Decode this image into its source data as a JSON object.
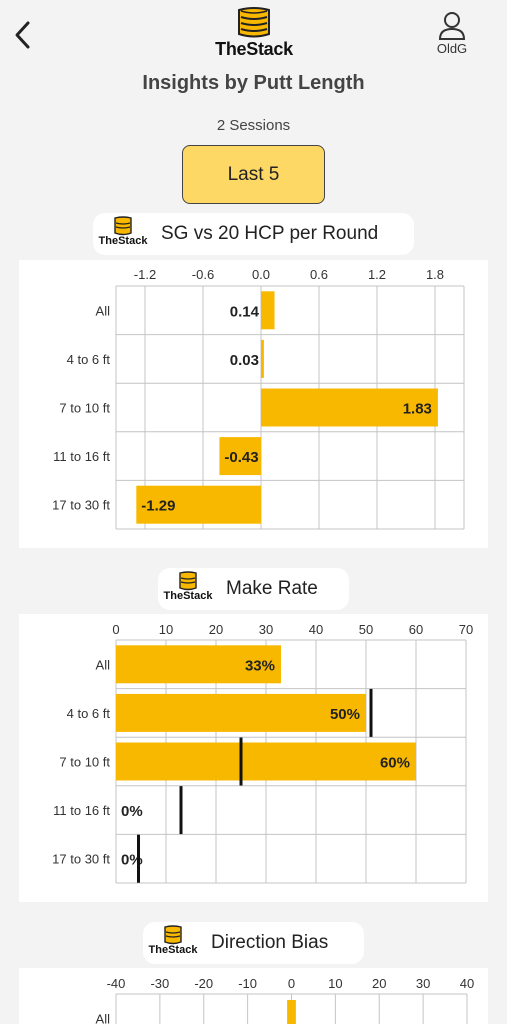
{
  "header": {
    "brand": "TheStack",
    "user_label": "OldG"
  },
  "page": {
    "title": "Insights by Putt Length",
    "sessions": "2 Sessions",
    "range_button": "Last 5"
  },
  "charts": {
    "sg": {
      "chip_title": "SG vs 20 HCP per Round",
      "brand": "TheStack"
    },
    "make": {
      "chip_title": "Make Rate",
      "brand": "TheStack"
    },
    "dir": {
      "chip_title": "Direction Bias",
      "brand": "TheStack"
    }
  },
  "colors": {
    "bar": "#f9b800",
    "background": "#f3f3f3",
    "range_button": "#fed864"
  },
  "chart_data": [
    {
      "type": "bar",
      "orientation": "horizontal",
      "title": "SG vs 20 HCP per Round",
      "categories": [
        "All",
        "4 to 6 ft",
        "7 to 10 ft",
        "11 to 16 ft",
        "17 to 30 ft"
      ],
      "values": [
        0.14,
        0.03,
        1.83,
        -0.43,
        -1.29
      ],
      "data_labels": [
        "0.14",
        "0.03",
        "1.83",
        "-0.43",
        "-1.29"
      ],
      "xlim": [
        -1.5,
        2.1
      ],
      "ticks": [
        "-1.2",
        "-0.6",
        "0.0",
        "0.6",
        "1.2",
        "1.8"
      ],
      "grid": true
    },
    {
      "type": "bar",
      "orientation": "horizontal",
      "title": "Make Rate",
      "categories": [
        "All",
        "4 to 6 ft",
        "7 to 10 ft",
        "11 to 16 ft",
        "17 to 30 ft"
      ],
      "values": [
        33,
        50,
        60,
        0,
        0
      ],
      "data_labels": [
        "33%",
        "50%",
        "60%",
        "0%",
        "0%"
      ],
      "benchmarks": [
        null,
        51,
        25,
        13,
        4.5
      ],
      "xlim": [
        0,
        70
      ],
      "ticks": [
        "0",
        "10",
        "20",
        "30",
        "40",
        "50",
        "60",
        "70"
      ],
      "grid": true
    },
    {
      "type": "bar",
      "orientation": "horizontal",
      "title": "Direction Bias",
      "categories": [
        "All"
      ],
      "values": [
        2
      ],
      "xlim": [
        -40,
        40
      ],
      "ticks": [
        "-40",
        "-30",
        "-20",
        "-10",
        "0",
        "10",
        "20",
        "30",
        "40"
      ],
      "grid": true
    }
  ]
}
